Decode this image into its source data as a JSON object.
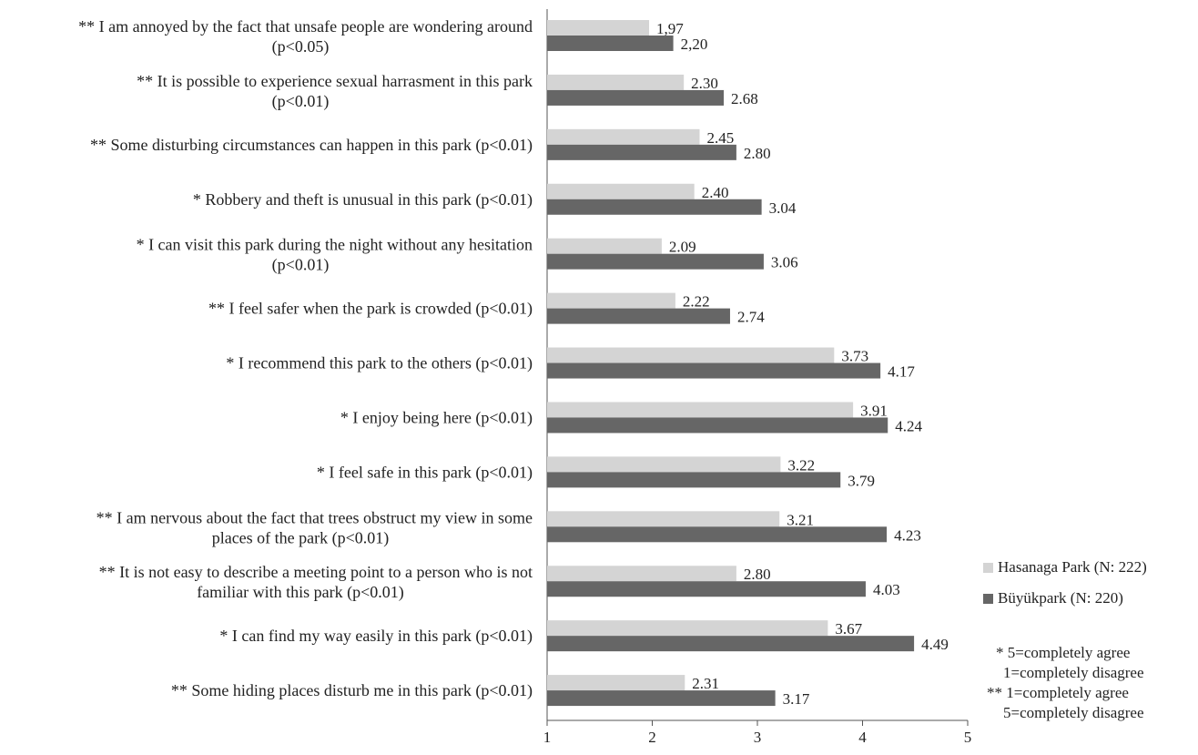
{
  "chart_data": {
    "type": "bar",
    "orientation": "horizontal",
    "categories": [
      [
        "** I am annoyed by the fact that unsafe people are wondering around",
        "(p<0.05)"
      ],
      [
        "** It is possible to experience sexual harrasment in this park",
        "(p<0.01)"
      ],
      [
        "** Some disturbing circumstances can happen in this park (p<0.01)"
      ],
      [
        "* Robbery and theft is unusual in this park (p<0.01)"
      ],
      [
        "* I can visit this park during the night without any hesitation",
        "(p<0.01)"
      ],
      [
        "** I feel safer when the park is crowded (p<0.01)"
      ],
      [
        "* I recommend this park to the others (p<0.01)"
      ],
      [
        "* I enjoy being here (p<0.01)"
      ],
      [
        "* I feel safe in this park (p<0.01)"
      ],
      [
        "** I am nervous about the fact that trees obstruct my view in some",
        "places of the park (p<0.01)"
      ],
      [
        "** It is not easy to describe a meeting point to a person who is not",
        "familiar with this park (p<0.01)"
      ],
      [
        "* I can find my way easily in this park (p<0.01)"
      ],
      [
        "** Some hiding places disturb me in this park  (p<0.01)"
      ]
    ],
    "series": [
      {
        "name": "Hasanaga Park (N: 222)",
        "color": "#d4d4d4",
        "values": [
          1.97,
          2.3,
          2.45,
          2.4,
          2.09,
          2.22,
          3.73,
          3.91,
          3.22,
          3.21,
          2.8,
          3.67,
          2.31
        ],
        "labels": [
          "1,97",
          "2.30",
          "2.45",
          "2.40",
          "2.09",
          "2.22",
          "3.73",
          "3.91",
          "3.22",
          "3.21",
          "2.80",
          "3.67",
          "2.31"
        ]
      },
      {
        "name": "Büyükpark (N: 220)",
        "color": "#666666",
        "values": [
          2.2,
          2.68,
          2.8,
          3.04,
          3.06,
          2.74,
          4.17,
          4.24,
          3.79,
          4.23,
          4.03,
          4.49,
          3.17
        ],
        "labels": [
          "2,20",
          "2.68",
          "2.80",
          "3.04",
          "3.06",
          "2.74",
          "4.17",
          "4.24",
          "3.79",
          "4.23",
          "4.03",
          "4.49",
          "3.17"
        ]
      }
    ],
    "xlim": [
      1,
      5
    ],
    "xticks": [
      "1",
      "2",
      "3",
      "4",
      "5"
    ],
    "title": "",
    "xlabel": "",
    "ylabel": "",
    "grid": false,
    "legend_position": "right"
  },
  "notes": [
    "* 5=completely agree",
    "1=completely disagree",
    "** 1=completely agree",
    "5=completely disagree"
  ]
}
